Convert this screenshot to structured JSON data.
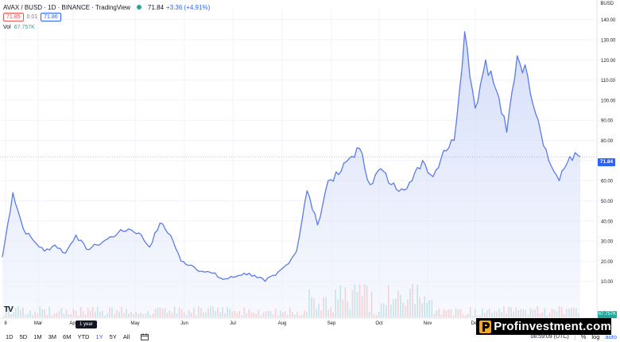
{
  "legend": {
    "symbol": "AVAX / BUSD · 1D · BINANCE · TradingView",
    "last": "71.84",
    "change": "+3.36 (+4.91%)",
    "sell_price": "71.85",
    "spread": "0.01",
    "buy_price": "71.86",
    "volume_label": "Vol",
    "volume_value": "67.757K"
  },
  "currency": "BUSD",
  "last_badge": "71.84",
  "volume_badge": "67.757K",
  "tooltip": "1 year",
  "ranges": [
    "1D",
    "5D",
    "1M",
    "3M",
    "6M",
    "YTD",
    "1Y",
    "5Y",
    "All"
  ],
  "active_range": "1Y",
  "time": "08:59:09 (UTC)",
  "controls": {
    "percent": "%",
    "log": "log",
    "auto": "auto"
  },
  "watermark": "Profinvestment.com",
  "colors": {
    "line": "#5b7be8",
    "fill": "#e3e9fb",
    "up": "#26a69a",
    "down": "#ef5350",
    "accent": "#2962ff"
  },
  "chart_data": {
    "type": "area",
    "title": "AVAX / BUSD · 1D · BINANCE",
    "y_axis_ticks": [
      "140.00",
      "130.00",
      "120.00",
      "110.00",
      "100.00",
      "90.00",
      "80.00",
      "70.00",
      "60.00",
      "50.00",
      "40.00",
      "30.00",
      "20.00",
      "10.00"
    ],
    "x_axis_ticks": [
      "8",
      "Mar",
      "Apr",
      "May",
      "Jun",
      "Jul",
      "Aug",
      "Sep",
      "Oct",
      "Nov",
      "Dec"
    ],
    "ylim": [
      0,
      145
    ],
    "series": [
      {
        "name": "AVAX / BUSD",
        "x": [
          "Feb 8",
          "Feb 12",
          "Feb 16",
          "Feb 20",
          "Feb 24",
          "Mar 1",
          "Mar 8",
          "Mar 15",
          "Mar 22",
          "Mar 29",
          "Apr 5",
          "Apr 12",
          "Apr 19",
          "Apr 26",
          "May 3",
          "May 10",
          "May 14",
          "May 19",
          "May 25",
          "Jun 1",
          "Jun 8",
          "Jun 15",
          "Jun 22",
          "Jun 29",
          "Jul 6",
          "Jul 13",
          "Jul 20",
          "Jul 27",
          "Aug 3",
          "Aug 10",
          "Aug 16",
          "Aug 20",
          "Aug 27",
          "Sep 1",
          "Sep 6",
          "Sep 10",
          "Sep 15",
          "Sep 20",
          "Sep 24",
          "Oct 1",
          "Oct 8",
          "Oct 15",
          "Oct 22",
          "Nov 1",
          "Nov 8",
          "Nov 13",
          "Nov 17",
          "Nov 21",
          "Nov 27",
          "Dec 3",
          "Dec 8",
          "Dec 14",
          "Dec 20",
          "Dec 24",
          "Dec 27",
          "Jan 2"
        ],
        "values": [
          22,
          54,
          36,
          30,
          25,
          28,
          24,
          33,
          26,
          28,
          31,
          34,
          36,
          34,
          27,
          39,
          33,
          20,
          18,
          15,
          14,
          11,
          12,
          14,
          13,
          10,
          13,
          18,
          25,
          55,
          38,
          60,
          63,
          71,
          76,
          58,
          66,
          58,
          56,
          60,
          70,
          62,
          75,
          80,
          134,
          96,
          120,
          105,
          84,
          122,
          112,
          90,
          70,
          60,
          72,
          71.84
        ]
      }
    ],
    "volume": {
      "name": "Vol",
      "last": "67.757K"
    }
  }
}
